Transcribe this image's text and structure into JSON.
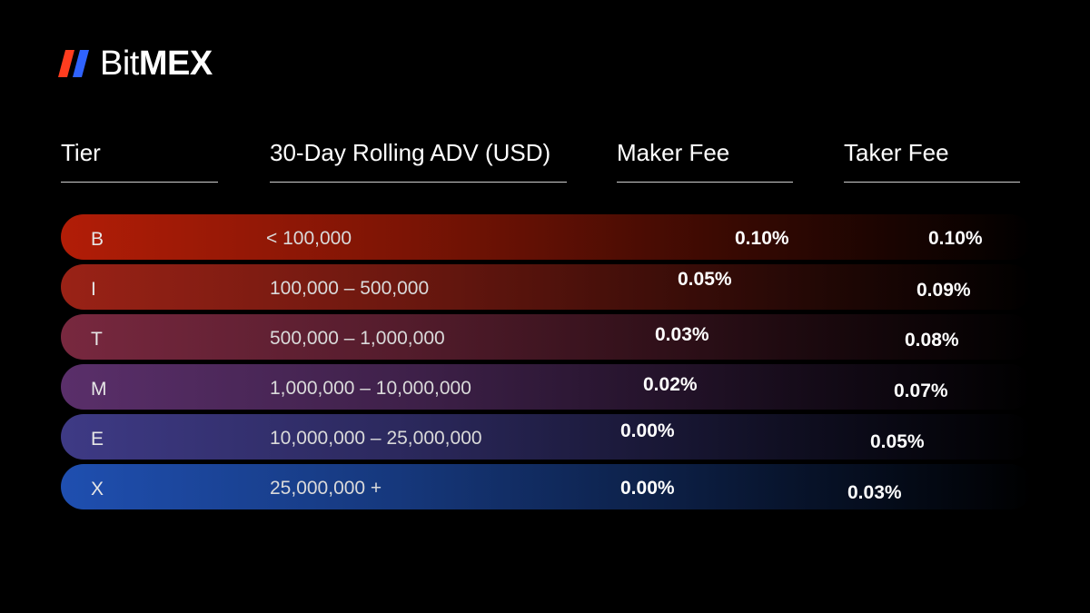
{
  "brand": {
    "name_prefix": "Bit",
    "name_suffix": "MEX",
    "mark_colors": [
      "#ff3d1f",
      "#2f63ff"
    ]
  },
  "headers": {
    "tier": "Tier",
    "adv": "30-Day Rolling ADV (USD)",
    "maker": "Maker Fee",
    "taker": "Taker Fee"
  },
  "tiers": [
    {
      "tier": "B",
      "adv": "< 100,000",
      "maker": "0.10%",
      "taker": "0.10%",
      "color": "#b21d07"
    },
    {
      "tier": "I",
      "adv": "100,000 – 500,000",
      "maker": "0.05%",
      "taker": "0.09%",
      "color": "#9a2216"
    },
    {
      "tier": "T",
      "adv": "500,000 – 1,000,000",
      "maker": "0.03%",
      "taker": "0.08%",
      "color": "#78283f"
    },
    {
      "tier": "M",
      "adv": "1,000,000 – 10,000,000",
      "maker": "0.02%",
      "taker": "0.07%",
      "color": "#5a2f6a"
    },
    {
      "tier": "E",
      "adv": "10,000,000 – 25,000,000",
      "maker": "0.00%",
      "taker": "0.05%",
      "color": "#3e3a85"
    },
    {
      "tier": "X",
      "adv": "25,000,000 +",
      "maker": "0.00%",
      "taker": "0.03%",
      "color": "#1f4fb0"
    }
  ]
}
